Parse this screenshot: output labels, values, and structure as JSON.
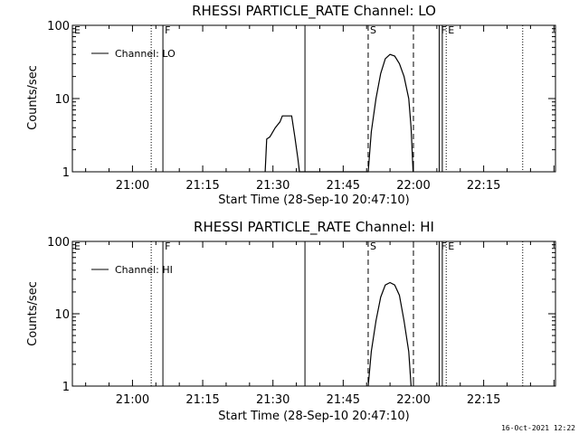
{
  "footer": {
    "timestamp": "16-Oct-2021 12:22"
  },
  "chart_data": [
    {
      "type": "line",
      "title": "RHESSI PARTICLE_RATE Channel: LO",
      "xlabel": "Start Time (28-Sep-10 20:47:10)",
      "ylabel": "Counts/sec",
      "yscale": "log",
      "ylim": [
        1,
        100
      ],
      "xlim": [
        "20:47:10",
        "22:30:20"
      ],
      "x_ticks": [
        "21:00",
        "21:15",
        "21:30",
        "21:45",
        "22:00",
        "22:15"
      ],
      "y_ticks": [
        "1",
        "10",
        "100"
      ],
      "legend": "top-left",
      "series": [
        {
          "name": "Channel: LO",
          "x": [
            "21:28:20",
            "21:28:40",
            "21:29:20",
            "21:30:30",
            "21:31:30",
            "21:32:00",
            "21:33:30",
            "21:34:00",
            "21:34:40",
            "21:35:20",
            "21:35:40",
            "21:50:20",
            "21:51:00",
            "21:52:00",
            "21:53:00",
            "21:54:00",
            "21:55:00",
            "21:56:00",
            "21:57:00",
            "21:58:00",
            "21:59:00",
            "21:59:30",
            "21:59:55"
          ],
          "y": [
            1,
            2.8,
            3.0,
            4.0,
            4.8,
            5.8,
            5.8,
            5.8,
            3.0,
            1.5,
            1,
            1,
            3.5,
            10,
            22,
            35,
            40,
            38,
            30,
            20,
            10,
            4,
            1
          ]
        }
      ],
      "markers": [
        {
          "label": "E",
          "time": "20:47:10",
          "style": "dotted"
        },
        {
          "label": "",
          "time": "21:04:00",
          "style": "dotted"
        },
        {
          "label": "F",
          "time": "21:06:30",
          "style": "solid"
        },
        {
          "label": "",
          "time": "21:36:50",
          "style": "solid"
        },
        {
          "label": "S",
          "time": "21:50:20",
          "style": "dashed"
        },
        {
          "label": "",
          "time": "22:00:00",
          "style": "dashed"
        },
        {
          "label": "F",
          "time": "22:05:30",
          "style": "solid"
        },
        {
          "label": "",
          "time": "22:06:10",
          "style": "solid"
        },
        {
          "label": "E",
          "time": "22:07:00",
          "style": "dotted"
        },
        {
          "label": "",
          "time": "22:23:20",
          "style": "dotted"
        }
      ]
    },
    {
      "type": "line",
      "title": "RHESSI PARTICLE_RATE Channel: HI",
      "xlabel": "Start Time (28-Sep-10 20:47:10)",
      "ylabel": "Counts/sec",
      "yscale": "log",
      "ylim": [
        1,
        100
      ],
      "xlim": [
        "20:47:10",
        "22:30:20"
      ],
      "x_ticks": [
        "21:00",
        "21:15",
        "21:30",
        "21:45",
        "22:00",
        "22:15"
      ],
      "y_ticks": [
        "1",
        "10",
        "100"
      ],
      "legend": "top-left",
      "series": [
        {
          "name": "Channel: HI",
          "x": [
            "21:50:20",
            "21:51:00",
            "21:52:00",
            "21:53:00",
            "21:54:00",
            "21:55:00",
            "21:56:00",
            "21:57:00",
            "21:58:00",
            "21:59:00",
            "21:59:30"
          ],
          "y": [
            1,
            3,
            8,
            17,
            25,
            27,
            25,
            18,
            8,
            3,
            1
          ]
        }
      ],
      "markers": [
        {
          "label": "E",
          "time": "20:47:10",
          "style": "dotted"
        },
        {
          "label": "",
          "time": "21:04:00",
          "style": "dotted"
        },
        {
          "label": "F",
          "time": "21:06:30",
          "style": "solid"
        },
        {
          "label": "",
          "time": "21:36:50",
          "style": "solid"
        },
        {
          "label": "S",
          "time": "21:50:20",
          "style": "dashed"
        },
        {
          "label": "",
          "time": "22:00:00",
          "style": "dashed"
        },
        {
          "label": "F",
          "time": "22:05:30",
          "style": "solid"
        },
        {
          "label": "",
          "time": "22:06:10",
          "style": "solid"
        },
        {
          "label": "E",
          "time": "22:07:00",
          "style": "dotted"
        },
        {
          "label": "",
          "time": "22:23:20",
          "style": "dotted"
        }
      ]
    }
  ]
}
